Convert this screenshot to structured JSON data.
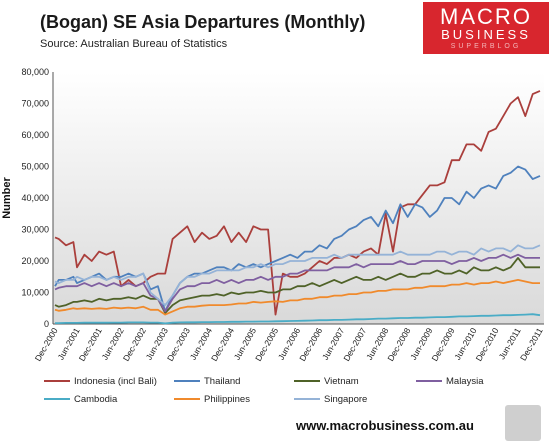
{
  "header": {
    "title": "(Bogan) SE Asia Departures (Monthly)",
    "source": "Source: Australian Bureau of Statistics"
  },
  "logo": {
    "line1": "MACRO",
    "line2": "BUSINESS",
    "line3": "SUPERBLOG"
  },
  "footer": {
    "website": "www.macrobusiness.com.au",
    "mascot_icon": "wolf-logo-icon"
  },
  "colors": {
    "indonesia": "#aa3f3c",
    "thailand": "#4f81bd",
    "vietnam": "#4f6228",
    "malaysia": "#7f5fa0",
    "cambodia": "#4aacc6",
    "philippines": "#f08a2c",
    "singapore": "#95b3d7"
  },
  "chart_data": {
    "type": "line",
    "title": "(Bogan) SE Asia Departures (Monthly)",
    "ylabel": "Number",
    "ylim": [
      0,
      80000
    ],
    "yticks": [
      "0",
      "10,000",
      "20,000",
      "30,000",
      "40,000",
      "50,000",
      "60,000",
      "70,000",
      "80,000"
    ],
    "grid": false,
    "legend": "bottom",
    "x_start": "Dec-2000",
    "x_end": "Dec-2011",
    "x_tick_labels": [
      "Dec-2000",
      "Jun-2001",
      "Dec-2001",
      "Jun-2002",
      "Dec-2002",
      "Jun-2003",
      "Dec-2003",
      "Jun-2004",
      "Dec-2004",
      "Jun-2005",
      "Dec-2005",
      "Jun-2006",
      "Dec-2006",
      "Jun-2007",
      "Dec-2007",
      "Jun-2008",
      "Dec-2008",
      "Jun-2009",
      "Dec-2009",
      "Jun-2010",
      "Dec-2010",
      "Jun-2011",
      "Dec-2011"
    ],
    "x_dates": [
      "Dec-2000",
      "Jan-2001",
      "Mar-2001",
      "May-2001",
      "Jun-2001",
      "Aug-2001",
      "Oct-2001",
      "Dec-2001",
      "Feb-2002",
      "Apr-2002",
      "Jun-2002",
      "Aug-2002",
      "Oct-2002",
      "Dec-2002",
      "Feb-2003",
      "Apr-2003",
      "Jun-2003",
      "Aug-2003",
      "Oct-2003",
      "Dec-2003",
      "Feb-2004",
      "Apr-2004",
      "Jun-2004",
      "Aug-2004",
      "Oct-2004",
      "Dec-2004",
      "Feb-2005",
      "Apr-2005",
      "Jun-2005",
      "Aug-2005",
      "Oct-2005",
      "Dec-2005",
      "Feb-2006",
      "Apr-2006",
      "Jun-2006",
      "Aug-2006",
      "Oct-2006",
      "Dec-2006",
      "Feb-2007",
      "Apr-2007",
      "Jun-2007",
      "Aug-2007",
      "Oct-2007",
      "Dec-2007",
      "Feb-2008",
      "Apr-2008",
      "Jun-2008",
      "Aug-2008",
      "Oct-2008",
      "Dec-2008",
      "Feb-2009",
      "Apr-2009",
      "Jun-2009",
      "Aug-2009",
      "Oct-2009",
      "Dec-2009",
      "Feb-2010",
      "Apr-2010",
      "Jun-2010",
      "Aug-2010",
      "Oct-2010",
      "Dec-2010",
      "Feb-2011",
      "Apr-2011",
      "Jun-2011",
      "Aug-2011",
      "Oct-2011",
      "Dec-2011"
    ],
    "series": [
      {
        "name": "Indonesia (incl Bali)",
        "color_key": "indonesia",
        "values": [
          27500,
          27000,
          25000,
          26000,
          18000,
          22000,
          20000,
          23000,
          22000,
          23000,
          12000,
          14000,
          12000,
          13000,
          15000,
          16000,
          16000,
          27000,
          29000,
          31000,
          26000,
          29000,
          27000,
          28000,
          31000,
          26000,
          29000,
          26000,
          31000,
          30000,
          30000,
          3000,
          16000,
          15000,
          15000,
          16000,
          18000,
          20000,
          19000,
          21000,
          21000,
          22000,
          21000,
          23000,
          24000,
          22000,
          35000,
          23000,
          37000,
          38000,
          38000,
          41000,
          44000,
          44000,
          45000,
          52000,
          52000,
          57000,
          57000,
          55000,
          61000,
          62000,
          66000,
          70000,
          72000,
          66000,
          73000,
          74000
        ]
      },
      {
        "name": "Thailand",
        "color_key": "thailand",
        "values": [
          12000,
          14000,
          14000,
          15000,
          13000,
          14000,
          15000,
          16000,
          14000,
          15000,
          15000,
          16000,
          15000,
          16000,
          11000,
          12000,
          4000,
          9000,
          13000,
          15000,
          16000,
          16000,
          17000,
          18000,
          18000,
          17000,
          19000,
          18000,
          19000,
          18000,
          19000,
          20000,
          21000,
          22000,
          21000,
          23000,
          23000,
          25000,
          24000,
          27000,
          28000,
          30000,
          31000,
          33000,
          34000,
          31000,
          36000,
          32000,
          38000,
          34000,
          38000,
          37000,
          34000,
          36000,
          40000,
          40000,
          38000,
          42000,
          40000,
          43000,
          44000,
          43000,
          47000,
          48000,
          50000,
          49000,
          46000,
          47000
        ]
      },
      {
        "name": "Vietnam",
        "color_key": "vietnam",
        "values": [
          6000,
          5500,
          6000,
          7000,
          7000,
          7500,
          7000,
          8000,
          7500,
          8000,
          8000,
          8500,
          8000,
          9000,
          8000,
          8000,
          3500,
          6000,
          7500,
          8000,
          8500,
          9000,
          9000,
          9500,
          9000,
          10000,
          9500,
          10000,
          10000,
          10500,
          10000,
          10000,
          11000,
          11000,
          12000,
          12000,
          13000,
          12000,
          13000,
          14000,
          13000,
          14000,
          15000,
          14000,
          14000,
          15000,
          14000,
          15000,
          16000,
          15000,
          15000,
          16000,
          16000,
          17000,
          16000,
          16000,
          17000,
          16000,
          18000,
          17000,
          17000,
          18000,
          17000,
          18000,
          21000,
          18000,
          18000,
          18000
        ]
      },
      {
        "name": "Malaysia",
        "color_key": "malaysia",
        "values": [
          11000,
          11500,
          12000,
          12000,
          12000,
          13000,
          12000,
          13000,
          12000,
          13000,
          12000,
          13000,
          12000,
          13000,
          9000,
          8000,
          4000,
          8000,
          11000,
          12000,
          12000,
          13000,
          13000,
          14000,
          13000,
          14000,
          13000,
          14000,
          14000,
          15000,
          14000,
          15000,
          15000,
          16000,
          16000,
          17000,
          17000,
          17000,
          17000,
          18000,
          18000,
          18000,
          19000,
          18000,
          19000,
          19000,
          19000,
          19000,
          20000,
          19000,
          19000,
          20000,
          20000,
          20000,
          20000,
          19000,
          20000,
          20000,
          21000,
          20000,
          21000,
          21000,
          22000,
          21000,
          22000,
          21000,
          21000,
          21000
        ]
      },
      {
        "name": "Cambodia",
        "color_key": "cambodia",
        "values": [
          300,
          300,
          350,
          350,
          350,
          400,
          400,
          450,
          400,
          450,
          450,
          500,
          500,
          500,
          450,
          450,
          200,
          400,
          500,
          550,
          550,
          600,
          600,
          650,
          650,
          700,
          700,
          750,
          750,
          800,
          800,
          850,
          900,
          950,
          1000,
          1050,
          1100,
          1200,
          1200,
          1300,
          1300,
          1400,
          1500,
          1500,
          1600,
          1700,
          1700,
          1800,
          1900,
          1900,
          2000,
          2000,
          2100,
          2200,
          2200,
          2300,
          2400,
          2400,
          2500,
          2600,
          2600,
          2700,
          2800,
          2800,
          2900,
          3000,
          3100,
          2800
        ]
      },
      {
        "name": "Philippines",
        "color_key": "philippines",
        "values": [
          4500,
          4200,
          4500,
          5000,
          4800,
          5000,
          4800,
          5000,
          4800,
          5200,
          5000,
          5200,
          5000,
          5500,
          4500,
          4500,
          3000,
          4000,
          5000,
          5500,
          5500,
          5800,
          6000,
          6000,
          6000,
          6200,
          6500,
          6500,
          7000,
          6800,
          7000,
          7200,
          7000,
          7500,
          7500,
          8000,
          8000,
          8500,
          8500,
          9000,
          9000,
          9500,
          9500,
          10000,
          10000,
          10500,
          10500,
          11000,
          11000,
          11000,
          11500,
          11500,
          12000,
          12000,
          12000,
          12500,
          12500,
          13000,
          12500,
          13000,
          13000,
          13500,
          13000,
          13500,
          14000,
          13500,
          13000,
          13000
        ]
      },
      {
        "name": "Singapore",
        "color_key": "singapore",
        "values": [
          13500,
          13000,
          14000,
          14000,
          15000,
          14000,
          15000,
          15000,
          14000,
          15000,
          14000,
          15000,
          15000,
          16000,
          10000,
          8000,
          6000,
          9000,
          13000,
          15000,
          15000,
          16000,
          16000,
          17000,
          17000,
          17000,
          17000,
          18000,
          18000,
          19000,
          18000,
          19000,
          19000,
          20000,
          20000,
          20000,
          21000,
          21000,
          21000,
          22000,
          21000,
          22000,
          22000,
          22000,
          22000,
          22000,
          22000,
          22000,
          23000,
          22000,
          22000,
          22000,
          22000,
          23000,
          23000,
          22000,
          23000,
          23000,
          22000,
          24000,
          23000,
          24000,
          24000,
          23000,
          25000,
          24000,
          24000,
          25000
        ]
      }
    ]
  }
}
